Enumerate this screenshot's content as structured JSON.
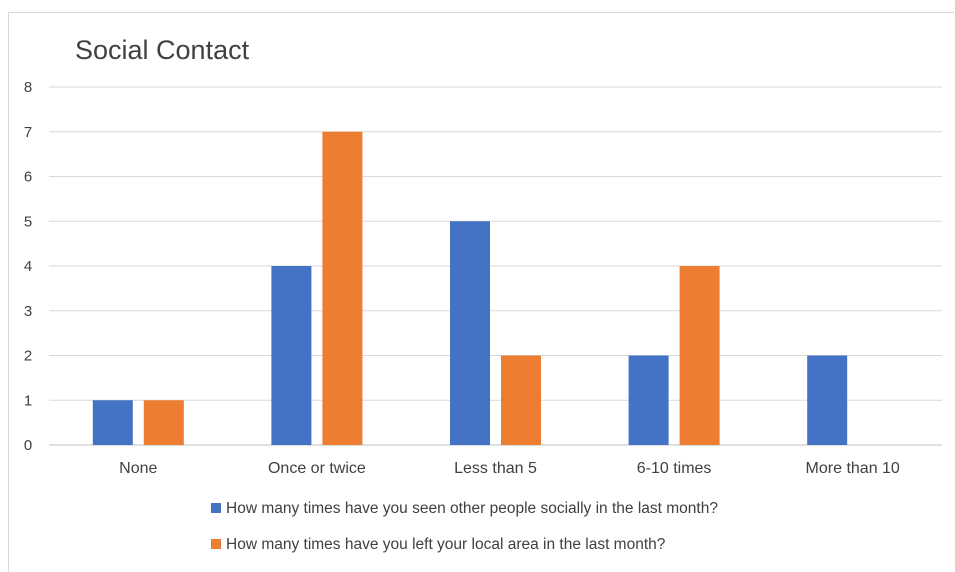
{
  "chart_data": {
    "type": "bar",
    "title": "Social Contact",
    "xlabel": "",
    "ylabel": "",
    "ylim": [
      0,
      8
    ],
    "yticks": [
      "0",
      "1",
      "2",
      "3",
      "4",
      "5",
      "6",
      "7",
      "8"
    ],
    "grid": true,
    "legend_position": "bottom",
    "categories": [
      "None",
      "Once or twice",
      "Less than 5",
      "6-10 times",
      "More than 10"
    ],
    "series": [
      {
        "name": "How many times have you seen other people socially in the last month?",
        "color": "#4472C4",
        "values": [
          1,
          4,
          5,
          2,
          2
        ]
      },
      {
        "name": "How many times have you left your local area in the last month?",
        "color": "#ED7D31",
        "values": [
          1,
          7,
          2,
          4,
          0
        ]
      }
    ]
  }
}
